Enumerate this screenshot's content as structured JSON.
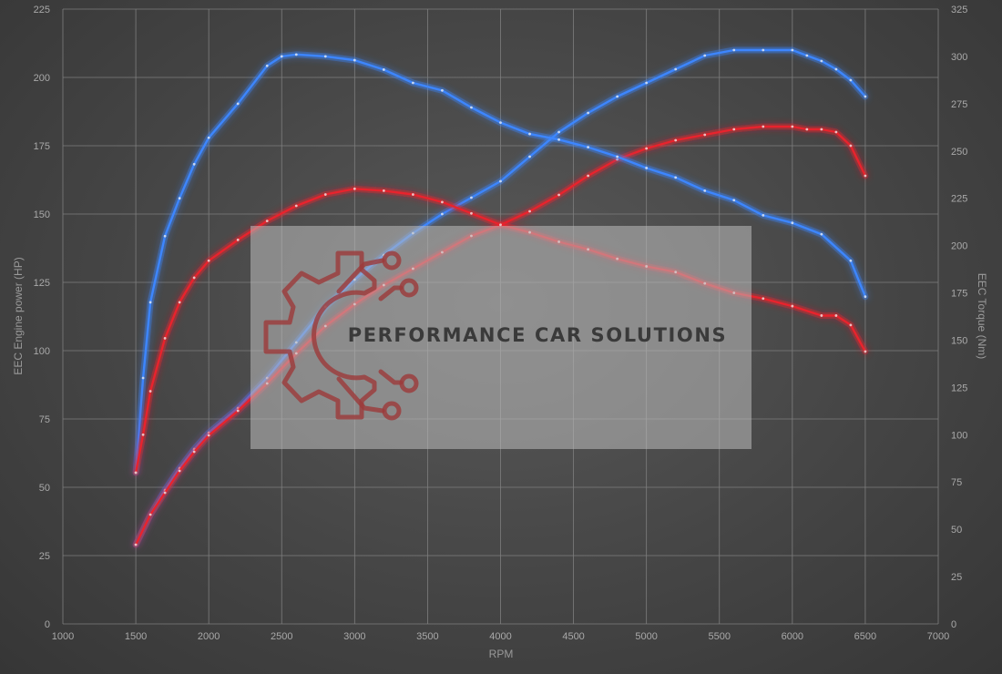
{
  "chart_data": {
    "type": "line",
    "xlabel": "RPM",
    "ylabel_left": "EEC Engine power (HP)",
    "ylabel_right": "EEC Torque (Nm)",
    "xlim": [
      1000,
      7000
    ],
    "ylim_left": [
      0,
      225
    ],
    "ylim_right": [
      0,
      325
    ],
    "x_ticks": [
      1000,
      1500,
      2000,
      2500,
      3000,
      3500,
      4000,
      4500,
      5000,
      5500,
      6000,
      6500,
      7000
    ],
    "y_left_ticks": [
      0,
      25,
      50,
      75,
      100,
      125,
      150,
      175,
      200,
      225
    ],
    "y_right_ticks": [
      0,
      25,
      50,
      75,
      100,
      125,
      150,
      175,
      200,
      225,
      250,
      275,
      300,
      325
    ],
    "grid": true,
    "series": [
      {
        "axis": "left",
        "color": "#3d86ff",
        "x": [
          1500,
          1600,
          1700,
          1800,
          1900,
          2000,
          2200,
          2400,
          2600,
          2800,
          3000,
          3200,
          3400,
          3600,
          3800,
          4000,
          4200,
          4400,
          4600,
          4800,
          5000,
          5200,
          5400,
          5600,
          5800,
          6000,
          6100,
          6200,
          6300,
          6400,
          6500
        ],
        "y": [
          29,
          40,
          49,
          57,
          64,
          70,
          79,
          90,
          103,
          116,
          126,
          135,
          143,
          150,
          156,
          162,
          171,
          180,
          187,
          193,
          198,
          203,
          208,
          210,
          210,
          210,
          208,
          206,
          203,
          199,
          193
        ]
      },
      {
        "axis": "left",
        "color": "#e8232d",
        "x": [
          1500,
          1600,
          1700,
          1800,
          1900,
          2000,
          2200,
          2400,
          2600,
          2800,
          3000,
          3200,
          3400,
          3600,
          3800,
          4000,
          4200,
          4400,
          4600,
          4800,
          5000,
          5200,
          5400,
          5600,
          5800,
          6000,
          6100,
          6200,
          6300,
          6400,
          6500
        ],
        "y": [
          29,
          40,
          48,
          56,
          63,
          69,
          78,
          88,
          99,
          109,
          117,
          124,
          130,
          136,
          142,
          146,
          151,
          157,
          164,
          170,
          174,
          177,
          179,
          181,
          182,
          182,
          181,
          181,
          180,
          175,
          164
        ]
      },
      {
        "axis": "right",
        "color": "#3d86ff",
        "x": [
          1500,
          1550,
          1600,
          1700,
          1800,
          1900,
          2000,
          2200,
          2400,
          2500,
          2600,
          2800,
          3000,
          3200,
          3400,
          3600,
          3800,
          4000,
          4200,
          4400,
          4600,
          4800,
          5000,
          5200,
          5400,
          5600,
          5800,
          6000,
          6200,
          6400,
          6500
        ],
        "y": [
          80,
          130,
          170,
          205,
          225,
          243,
          257,
          275,
          295,
          300,
          301,
          300,
          298,
          293,
          286,
          282,
          273,
          265,
          259,
          256,
          252,
          247,
          241,
          236,
          229,
          224,
          216,
          212,
          206,
          192,
          173
        ]
      },
      {
        "axis": "right",
        "color": "#e8232d",
        "x": [
          1500,
          1550,
          1600,
          1700,
          1800,
          1900,
          2000,
          2200,
          2400,
          2600,
          2800,
          3000,
          3200,
          3400,
          3600,
          3800,
          4000,
          4200,
          4400,
          4600,
          4800,
          5000,
          5200,
          5400,
          5600,
          5800,
          6000,
          6200,
          6300,
          6400,
          6500
        ],
        "y": [
          80,
          100,
          123,
          151,
          170,
          183,
          192,
          203,
          213,
          221,
          227,
          230,
          229,
          227,
          223,
          217,
          211,
          207,
          202,
          198,
          193,
          189,
          186,
          180,
          175,
          172,
          168,
          163,
          163,
          158,
          144
        ]
      }
    ]
  },
  "watermark": {
    "text": "PERFORMANCE CAR SOLUTIONS",
    "logo_name": "gear-circuit-logo",
    "logo_color": "#9c3a3a"
  }
}
